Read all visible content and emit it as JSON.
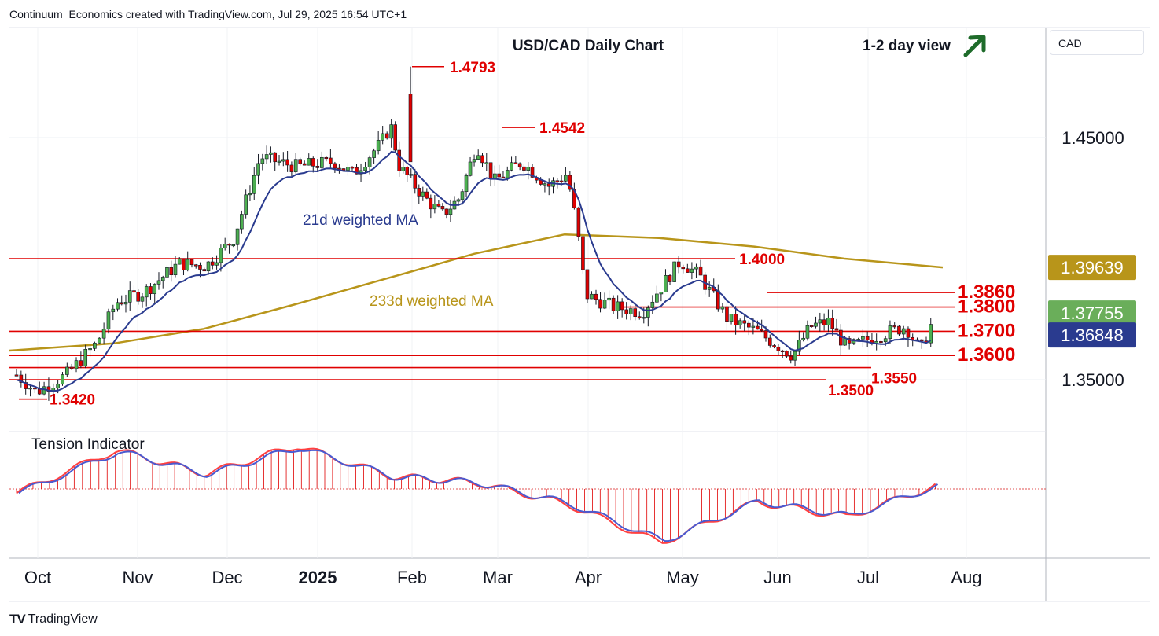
{
  "header": {
    "attribution": "Continuum_Economics created with TradingView.com, Jul 29, 2025 16:54 UTC+1",
    "currency": "CAD",
    "brand": "TradingView",
    "brand_logo": "TV"
  },
  "colors": {
    "bull": "#4caf50",
    "bear": "#e00000",
    "ma21": "#2a3b8f",
    "ma233": "#b8951a",
    "level": "#e00000",
    "arrow": "#1e6b2a"
  },
  "chart_data": [
    {
      "type": "candlestick",
      "title": "USD/CAD Daily Chart",
      "view_label": "1-2 day view",
      "view_icon": "up-arrow-icon",
      "x_ticks": [
        "Oct",
        "Nov",
        "Dec",
        "2025",
        "Feb",
        "Mar",
        "Apr",
        "May",
        "Jun",
        "Jul",
        "Aug"
      ],
      "y_ticks": [
        "1.35000",
        "1.45000"
      ],
      "ylim": [
        1.325,
        1.49
      ],
      "annotations": [
        "21d weighted MA",
        "233d weighted MA"
      ],
      "support_resistance": [
        {
          "label": "1.4793",
          "value": 1.4793
        },
        {
          "label": "1.4542",
          "value": 1.4542
        },
        {
          "label": "1.4000",
          "value": 1.4
        },
        {
          "label": "1.3860",
          "value": 1.386
        },
        {
          "label": "1.3800",
          "value": 1.38
        },
        {
          "label": "1.3700",
          "value": 1.37
        },
        {
          "label": "1.3600",
          "value": 1.36
        },
        {
          "label": "1.3550",
          "value": 1.355
        },
        {
          "label": "1.3500",
          "value": 1.35
        },
        {
          "label": "1.3420",
          "value": 1.342
        }
      ],
      "price_badges": [
        {
          "label": "1.39639",
          "value": 1.39639,
          "color": "#b8951a"
        },
        {
          "label": "1.37755",
          "value": 1.37755,
          "color": "#6aae5a"
        },
        {
          "label": "1.36848",
          "value": 1.36848,
          "color": "#2a3b8f"
        }
      ],
      "series": [
        {
          "name": "USD/CAD",
          "x": [
            "Oct",
            "Nov",
            "Dec",
            "2025",
            "Feb",
            "Mar",
            "Apr",
            "May",
            "Jun",
            "Jul",
            "Aug"
          ],
          "values": [
            1.35,
            1.39,
            1.4,
            1.438,
            1.46,
            1.445,
            1.43,
            1.38,
            1.37,
            1.368,
            1.3776
          ]
        },
        {
          "name": "21d weighted MA",
          "x": [
            "Oct",
            "Nov",
            "Dec",
            "2025",
            "Feb",
            "Mar",
            "Apr",
            "May",
            "Jun",
            "Jul",
            "Aug"
          ],
          "values": [
            1.356,
            1.383,
            1.398,
            1.43,
            1.438,
            1.427,
            1.428,
            1.384,
            1.371,
            1.365,
            1.3685
          ]
        },
        {
          "name": "233d weighted MA",
          "x": [
            "Oct",
            "Nov",
            "Dec",
            "2025",
            "Feb",
            "Mar",
            "Apr",
            "May",
            "Jun",
            "Jul",
            "Aug"
          ],
          "values": [
            1.362,
            1.365,
            1.371,
            1.381,
            1.392,
            1.402,
            1.41,
            1.4085,
            1.405,
            1.4,
            1.3964
          ]
        }
      ]
    },
    {
      "type": "area",
      "title": "Tension Indicator",
      "x": [
        "Oct",
        "Nov",
        "Dec",
        "2025",
        "Feb",
        "Mar",
        "Apr",
        "May",
        "Jun",
        "Jul",
        "Aug"
      ],
      "series": [
        {
          "name": "Tension Indicator",
          "values": [
            -0.1,
            0.9,
            0.35,
            1.0,
            0.3,
            0.15,
            -0.35,
            -1.25,
            -0.3,
            -0.65,
            0.15
          ]
        }
      ]
    }
  ]
}
